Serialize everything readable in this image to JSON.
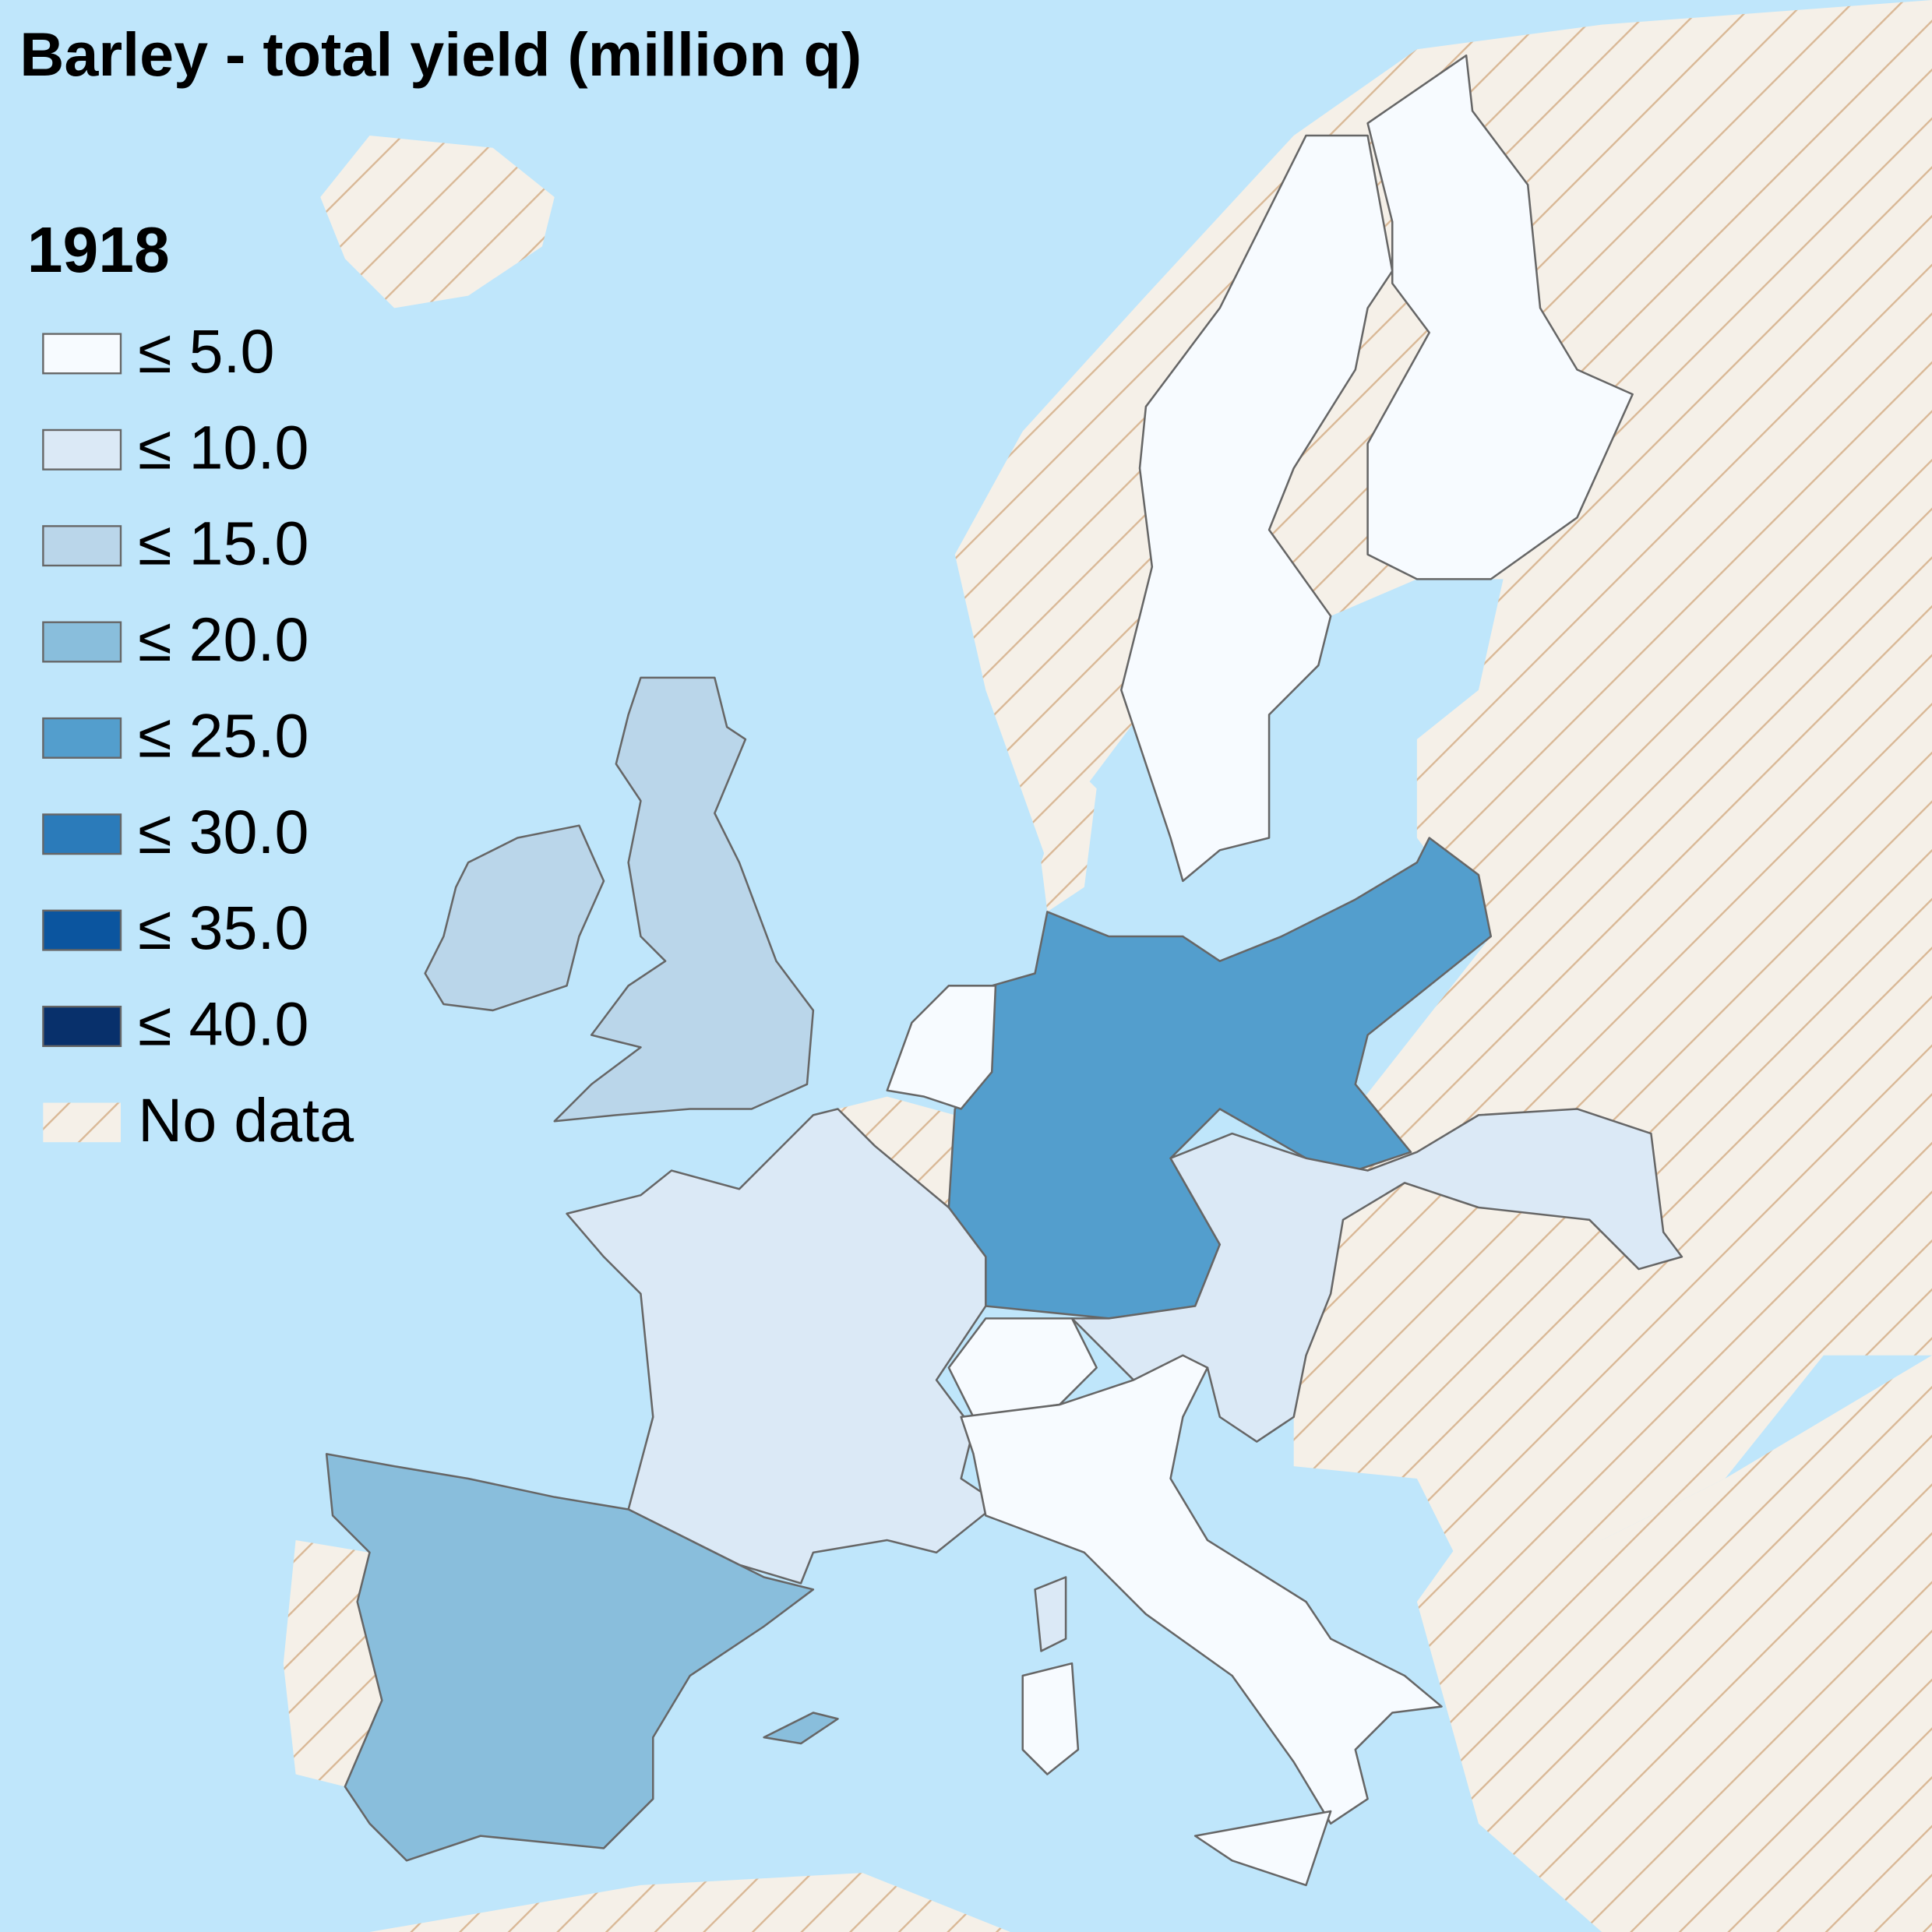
{
  "title": "Barley - total yield (million q)",
  "legend": {
    "title": "1918",
    "items": [
      {
        "label": "≤ 5.0",
        "color": "#f7fbff"
      },
      {
        "label": "≤ 10.0",
        "color": "#dbe9f6"
      },
      {
        "label": "≤ 15.0",
        "color": "#bad6ea"
      },
      {
        "label": "≤ 20.0",
        "color": "#89bedc"
      },
      {
        "label": "≤ 25.0",
        "color": "#539ecd"
      },
      {
        "label": "≤ 30.0",
        "color": "#2b7bba"
      },
      {
        "label": "≤ 35.0",
        "color": "#0b559f"
      },
      {
        "label": "≤ 40.0",
        "color": "#08306b"
      },
      {
        "label": "No data"
      }
    ]
  }
}
